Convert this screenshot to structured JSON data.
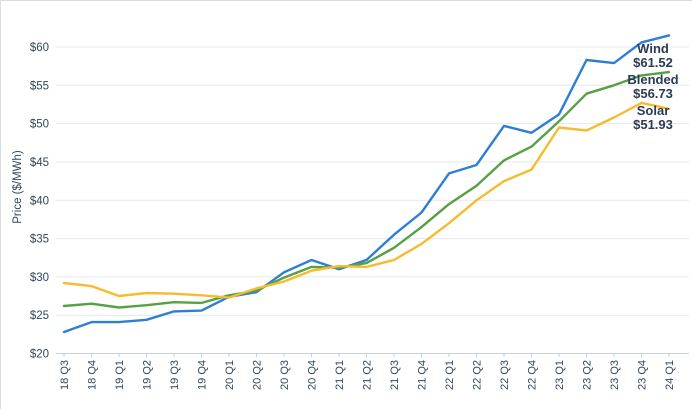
{
  "colors": {
    "wind_blue": "#2e7fd4",
    "blended_green": "#55a143",
    "solar_yellow": "#f6bb2e",
    "grid": "#e4e9f1",
    "axis": "#c9d2db",
    "tick_text": "#33475b",
    "label_text": "#2b3c52",
    "background": "#ffffff"
  },
  "chart_data": {
    "type": "line",
    "title": "",
    "xlabel": "",
    "ylabel": "Price ($/MWh)",
    "grid": "horizontal",
    "legend_position": "end-of-line-labels-right",
    "ylim": [
      20,
      63
    ],
    "y_tick_values": [
      20,
      25,
      30,
      35,
      40,
      45,
      50,
      55,
      60
    ],
    "y_ticks": [
      "$20",
      "$25",
      "$30",
      "$35",
      "$40",
      "$45",
      "$50",
      "$55",
      "$60"
    ],
    "x_categories": [
      "18 Q3",
      "18 Q4",
      "19 Q1",
      "19 Q2",
      "19 Q3",
      "19 Q4",
      "20 Q1",
      "20 Q2",
      "20 Q3",
      "20 Q4",
      "21 Q1",
      "21 Q2",
      "21 Q3",
      "21 Q4",
      "22 Q1",
      "22 Q2",
      "22 Q3",
      "22 Q4",
      "23 Q1",
      "23 Q2",
      "23 Q3",
      "23 Q4",
      "24 Q1"
    ],
    "series": [
      {
        "name": "Wind",
        "end_label": "$61.52",
        "end_value": 61.52,
        "color": "#2e7fd4",
        "values": [
          22.8,
          24.1,
          24.1,
          24.4,
          25.5,
          25.6,
          27.4,
          28.0,
          30.6,
          32.2,
          31.0,
          32.2,
          35.5,
          38.4,
          43.5,
          44.6,
          49.7,
          48.8,
          51.2,
          58.3,
          57.9,
          60.6,
          61.52
        ]
      },
      {
        "name": "Blended",
        "end_label": "$56.73",
        "end_value": 56.73,
        "color": "#55a143",
        "values": [
          26.2,
          26.5,
          26.0,
          26.3,
          26.7,
          26.6,
          27.6,
          28.2,
          29.9,
          31.3,
          31.2,
          31.8,
          33.8,
          36.5,
          39.5,
          41.9,
          45.2,
          47.0,
          50.3,
          53.9,
          55.0,
          56.3,
          56.73
        ]
      },
      {
        "name": "Solar",
        "end_label": "$51.93",
        "end_value": 51.93,
        "color": "#f6bb2e",
        "values": [
          29.2,
          28.8,
          27.5,
          27.9,
          27.8,
          27.6,
          27.3,
          28.5,
          29.4,
          30.8,
          31.4,
          31.3,
          32.2,
          34.3,
          37.0,
          40.0,
          42.5,
          44.0,
          49.5,
          49.1,
          50.8,
          52.7,
          51.93
        ]
      }
    ]
  }
}
